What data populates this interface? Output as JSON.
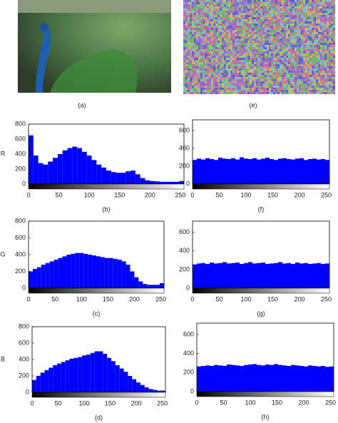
{
  "images": [
    {
      "caption": "(a)"
    },
    {
      "caption": "(e)"
    }
  ],
  "chart_data": [
    {
      "type": "histogram",
      "ylabel": "R",
      "caption": "(b)",
      "color": "#0000ff",
      "bins": [
        0,
        8,
        16,
        24,
        32,
        40,
        48,
        56,
        64,
        72,
        80,
        88,
        96,
        104,
        112,
        120,
        128,
        136,
        144,
        152,
        160,
        168,
        176,
        184,
        192,
        200,
        208,
        216,
        224,
        232,
        240,
        248,
        256
      ],
      "values": [
        650,
        380,
        280,
        260,
        300,
        350,
        400,
        450,
        480,
        500,
        480,
        430,
        380,
        320,
        260,
        220,
        180,
        160,
        150,
        150,
        170,
        180,
        130,
        80,
        50,
        40,
        35,
        30,
        30,
        30,
        30,
        40
      ],
      "xlim": [
        0,
        256
      ],
      "xticks": [
        0,
        50,
        100,
        150,
        200,
        250
      ],
      "ylim": [
        0,
        800
      ],
      "yticks": [
        0,
        200,
        400,
        600,
        800
      ]
    },
    {
      "type": "histogram",
      "caption": "(f)",
      "color": "#0000ff",
      "bins": [
        0,
        8,
        16,
        24,
        32,
        40,
        48,
        56,
        64,
        72,
        80,
        88,
        96,
        104,
        112,
        120,
        128,
        136,
        144,
        152,
        160,
        168,
        176,
        184,
        192,
        200,
        208,
        216,
        224,
        232,
        240,
        248,
        256
      ],
      "values": [
        270,
        285,
        275,
        290,
        280,
        270,
        295,
        285,
        280,
        290,
        275,
        300,
        285,
        280,
        290,
        275,
        285,
        295,
        280,
        270,
        285,
        290,
        280,
        275,
        285,
        290,
        270,
        280,
        285,
        275,
        280,
        270
      ],
      "xlim": [
        0,
        256
      ],
      "xticks": [
        0,
        50,
        100,
        150,
        200,
        250
      ],
      "ylim": [
        0,
        720
      ],
      "yticks": [
        0,
        200,
        400,
        600
      ]
    },
    {
      "type": "histogram",
      "ylabel": "G",
      "caption": "(c)",
      "color": "#0000ff",
      "bins": [
        0,
        8,
        16,
        24,
        32,
        40,
        48,
        56,
        64,
        72,
        80,
        88,
        96,
        104,
        112,
        120,
        128,
        136,
        144,
        152,
        160,
        168,
        176,
        184,
        192,
        200,
        208,
        216,
        224,
        232,
        240,
        248,
        256
      ],
      "values": [
        200,
        230,
        250,
        280,
        300,
        320,
        340,
        360,
        380,
        400,
        410,
        420,
        420,
        410,
        400,
        390,
        380,
        370,
        360,
        360,
        350,
        340,
        320,
        280,
        200,
        130,
        80,
        50,
        40,
        40,
        40,
        60
      ],
      "xlim": [
        0,
        256
      ],
      "xticks": [
        0,
        50,
        100,
        150,
        200,
        250
      ],
      "ylim": [
        0,
        800
      ],
      "yticks": [
        0,
        200,
        400,
        600,
        800
      ]
    },
    {
      "type": "histogram",
      "caption": "(g)",
      "color": "#0000ff",
      "bins": [
        0,
        8,
        16,
        24,
        32,
        40,
        48,
        56,
        64,
        72,
        80,
        88,
        96,
        104,
        112,
        120,
        128,
        136,
        144,
        152,
        160,
        168,
        176,
        184,
        192,
        200,
        208,
        216,
        224,
        232,
        240,
        248,
        256
      ],
      "values": [
        255,
        265,
        270,
        260,
        275,
        265,
        270,
        280,
        265,
        270,
        275,
        260,
        270,
        280,
        265,
        270,
        275,
        260,
        265,
        270,
        280,
        265,
        270,
        260,
        275,
        265,
        270,
        260,
        265,
        270,
        260,
        265
      ],
      "xlim": [
        0,
        256
      ],
      "xticks": [
        0,
        50,
        100,
        150,
        200,
        250
      ],
      "ylim": [
        0,
        720
      ],
      "yticks": [
        0,
        200,
        400,
        600
      ]
    },
    {
      "type": "histogram",
      "ylabel": "B",
      "caption": "(d)",
      "color": "#0000ff",
      "bins": [
        0,
        8,
        16,
        24,
        32,
        40,
        48,
        56,
        64,
        72,
        80,
        88,
        96,
        104,
        112,
        120,
        128,
        136,
        144,
        152,
        160,
        168,
        176,
        184,
        192,
        200,
        208,
        216,
        224,
        232,
        240,
        248,
        256
      ],
      "values": [
        150,
        200,
        240,
        270,
        300,
        330,
        350,
        370,
        390,
        410,
        420,
        430,
        450,
        460,
        480,
        500,
        500,
        470,
        420,
        380,
        330,
        290,
        250,
        200,
        160,
        120,
        90,
        60,
        40,
        30,
        20,
        20
      ],
      "xlim": [
        0,
        256
      ],
      "xticks": [
        0,
        50,
        100,
        150,
        200,
        250
      ],
      "ylim": [
        0,
        800
      ],
      "yticks": [
        0,
        200,
        400,
        600,
        800
      ]
    },
    {
      "type": "histogram",
      "caption": "(h)",
      "color": "#0000ff",
      "bins": [
        0,
        8,
        16,
        24,
        32,
        40,
        48,
        56,
        64,
        72,
        80,
        88,
        96,
        104,
        112,
        120,
        128,
        136,
        144,
        152,
        160,
        168,
        176,
        184,
        192,
        200,
        208,
        216,
        224,
        232,
        240,
        248,
        256
      ],
      "values": [
        265,
        270,
        275,
        270,
        280,
        275,
        270,
        285,
        280,
        275,
        270,
        280,
        285,
        290,
        280,
        275,
        285,
        280,
        290,
        280,
        275,
        270,
        280,
        275,
        270,
        265,
        275,
        270,
        265,
        270,
        260,
        265
      ],
      "xlim": [
        0,
        256
      ],
      "xticks": [
        0,
        50,
        100,
        150,
        200,
        250
      ],
      "ylim": [
        0,
        720
      ],
      "yticks": [
        0,
        200,
        400,
        600
      ]
    }
  ]
}
